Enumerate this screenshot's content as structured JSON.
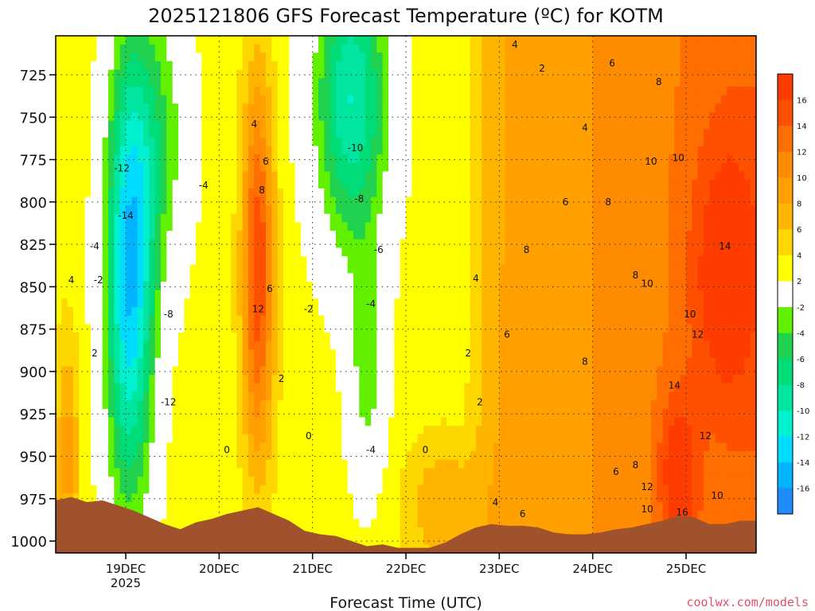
{
  "chart_data": {
    "type": "heatmap",
    "title": "2025121806 GFS Forecast Temperature (ºC) for KOTM",
    "xlabel": "Forecast Time (UTC)",
    "ylabel": "",
    "credit": "coolwx.com/models",
    "x_ticks": [
      {
        "label": "19DEC",
        "sub": "2025",
        "hour": 18
      },
      {
        "label": "20DEC",
        "sub": "",
        "hour": 42
      },
      {
        "label": "21DEC",
        "sub": "",
        "hour": 66
      },
      {
        "label": "22DEC",
        "sub": "",
        "hour": 90
      },
      {
        "label": "23DEC",
        "sub": "",
        "hour": 114
      },
      {
        "label": "24DEC",
        "sub": "",
        "hour": 138
      },
      {
        "label": "25DEC",
        "sub": "",
        "hour": 162
      }
    ],
    "xlim_hours": [
      0,
      180
    ],
    "y_ticks": [
      725,
      750,
      775,
      800,
      825,
      850,
      875,
      900,
      925,
      950,
      975,
      1000
    ],
    "ylim_hPa": [
      1007,
      702
    ],
    "colorbar": {
      "labels": [
        -16,
        -14,
        -12,
        -10,
        -8,
        -6,
        -4,
        -2,
        2,
        4,
        6,
        8,
        10,
        12,
        14,
        16
      ],
      "bins": [
        {
          "lo": -18,
          "hi": -16,
          "color": "#1e8cff"
        },
        {
          "lo": -16,
          "hi": -14,
          "color": "#00b4ff"
        },
        {
          "lo": -14,
          "hi": -12,
          "color": "#00dcff"
        },
        {
          "lo": -12,
          "hi": -10,
          "color": "#00f0d0"
        },
        {
          "lo": -10,
          "hi": -8,
          "color": "#00e6a0"
        },
        {
          "lo": -8,
          "hi": -6,
          "color": "#00dc78"
        },
        {
          "lo": -6,
          "hi": -4,
          "color": "#20d250"
        },
        {
          "lo": -4,
          "hi": -2,
          "color": "#60f000"
        },
        {
          "lo": -2,
          "hi": 2,
          "color": "#ffffff"
        },
        {
          "lo": 2,
          "hi": 4,
          "color": "#ffff00"
        },
        {
          "lo": 4,
          "hi": 6,
          "color": "#ffd700"
        },
        {
          "lo": 6,
          "hi": 8,
          "color": "#ffb400"
        },
        {
          "lo": 8,
          "hi": 10,
          "color": "#ffa000"
        },
        {
          "lo": 10,
          "hi": 12,
          "color": "#ff8c00"
        },
        {
          "lo": 12,
          "hi": 14,
          "color": "#ff6e00"
        },
        {
          "lo": 14,
          "hi": 16,
          "color": "#ff5000"
        },
        {
          "lo": 16,
          "hi": 18,
          "color": "#ff3c00"
        }
      ]
    },
    "terrain_color": "#a0522d",
    "surface_pressure": [
      [
        0,
        976
      ],
      [
        4,
        974
      ],
      [
        8,
        977
      ],
      [
        12,
        976
      ],
      [
        16,
        979
      ],
      [
        20,
        982
      ],
      [
        24,
        986
      ],
      [
        28,
        990
      ],
      [
        32,
        993
      ],
      [
        36,
        989
      ],
      [
        40,
        987
      ],
      [
        44,
        984
      ],
      [
        48,
        982
      ],
      [
        52,
        980
      ],
      [
        56,
        984
      ],
      [
        60,
        988
      ],
      [
        64,
        994
      ],
      [
        68,
        996
      ],
      [
        72,
        997
      ],
      [
        76,
        1000
      ],
      [
        80,
        1003
      ],
      [
        84,
        1002
      ],
      [
        88,
        1004
      ],
      [
        92,
        1004
      ],
      [
        96,
        1004
      ],
      [
        100,
        1001
      ],
      [
        104,
        996
      ],
      [
        108,
        992
      ],
      [
        112,
        990
      ],
      [
        116,
        991
      ],
      [
        120,
        991
      ],
      [
        124,
        992
      ],
      [
        128,
        995
      ],
      [
        132,
        996
      ],
      [
        136,
        996
      ],
      [
        140,
        995
      ],
      [
        144,
        993
      ],
      [
        148,
        992
      ],
      [
        152,
        990
      ],
      [
        156,
        988
      ],
      [
        160,
        985
      ],
      [
        164,
        986
      ],
      [
        168,
        990
      ],
      [
        172,
        990
      ],
      [
        176,
        988
      ],
      [
        180,
        988
      ]
    ],
    "contour_labels": [
      {
        "text": "4",
        "hour": 4,
        "p": 848
      },
      {
        "text": "-4",
        "hour": 10,
        "p": 828
      },
      {
        "text": "-2",
        "hour": 11,
        "p": 848
      },
      {
        "text": "2",
        "hour": 10,
        "p": 891
      },
      {
        "text": "-12",
        "hour": 17,
        "p": 782
      },
      {
        "text": "-14",
        "hour": 18,
        "p": 810
      },
      {
        "text": "-8",
        "hour": 29,
        "p": 868
      },
      {
        "text": "-12",
        "hour": 29,
        "p": 920
      },
      {
        "text": "-4",
        "hour": 38,
        "p": 792
      },
      {
        "text": "4",
        "hour": 51,
        "p": 756
      },
      {
        "text": "6",
        "hour": 54,
        "p": 778
      },
      {
        "text": "8",
        "hour": 53,
        "p": 795
      },
      {
        "text": "6",
        "hour": 55,
        "p": 853
      },
      {
        "text": "12",
        "hour": 52,
        "p": 865
      },
      {
        "text": "2",
        "hour": 58,
        "p": 906
      },
      {
        "text": "0",
        "hour": 44,
        "p": 948
      },
      {
        "text": "-10",
        "hour": 77,
        "p": 770
      },
      {
        "text": "-8",
        "hour": 78,
        "p": 800
      },
      {
        "text": "-6",
        "hour": 83,
        "p": 830
      },
      {
        "text": "-4",
        "hour": 81,
        "p": 862
      },
      {
        "text": "-2",
        "hour": 65,
        "p": 865
      },
      {
        "text": "0",
        "hour": 65,
        "p": 940
      },
      {
        "text": "-4",
        "hour": 81,
        "p": 948
      },
      {
        "text": "0",
        "hour": 95,
        "p": 948
      },
      {
        "text": "4",
        "hour": 118,
        "p": 709
      },
      {
        "text": "2",
        "hour": 125,
        "p": 723
      },
      {
        "text": "6",
        "hour": 143,
        "p": 720
      },
      {
        "text": "8",
        "hour": 155,
        "p": 731
      },
      {
        "text": "4",
        "hour": 136,
        "p": 758
      },
      {
        "text": "10",
        "hour": 153,
        "p": 778
      },
      {
        "text": "10",
        "hour": 160,
        "p": 776
      },
      {
        "text": "6",
        "hour": 131,
        "p": 802
      },
      {
        "text": "8",
        "hour": 142,
        "p": 802
      },
      {
        "text": "8",
        "hour": 121,
        "p": 830
      },
      {
        "text": "4",
        "hour": 108,
        "p": 847
      },
      {
        "text": "6",
        "hour": 116,
        "p": 880
      },
      {
        "text": "2",
        "hour": 106,
        "p": 891
      },
      {
        "text": "8",
        "hour": 136,
        "p": 896
      },
      {
        "text": "2",
        "hour": 109,
        "p": 920
      },
      {
        "text": "8",
        "hour": 149,
        "p": 845
      },
      {
        "text": "10",
        "hour": 152,
        "p": 850
      },
      {
        "text": "10",
        "hour": 163,
        "p": 868
      },
      {
        "text": "12",
        "hour": 165,
        "p": 880
      },
      {
        "text": "14",
        "hour": 172,
        "p": 828
      },
      {
        "text": "14",
        "hour": 159,
        "p": 910
      },
      {
        "text": "12",
        "hour": 167,
        "p": 940
      },
      {
        "text": "8",
        "hour": 149,
        "p": 957
      },
      {
        "text": "6",
        "hour": 144,
        "p": 961
      },
      {
        "text": "12",
        "hour": 152,
        "p": 970
      },
      {
        "text": "10",
        "hour": 152,
        "p": 983
      },
      {
        "text": "16",
        "hour": 161,
        "p": 985
      },
      {
        "text": "10",
        "hour": 170,
        "p": 975
      },
      {
        "text": "4",
        "hour": 113,
        "p": 979
      },
      {
        "text": "6",
        "hour": 120,
        "p": 986
      }
    ]
  }
}
